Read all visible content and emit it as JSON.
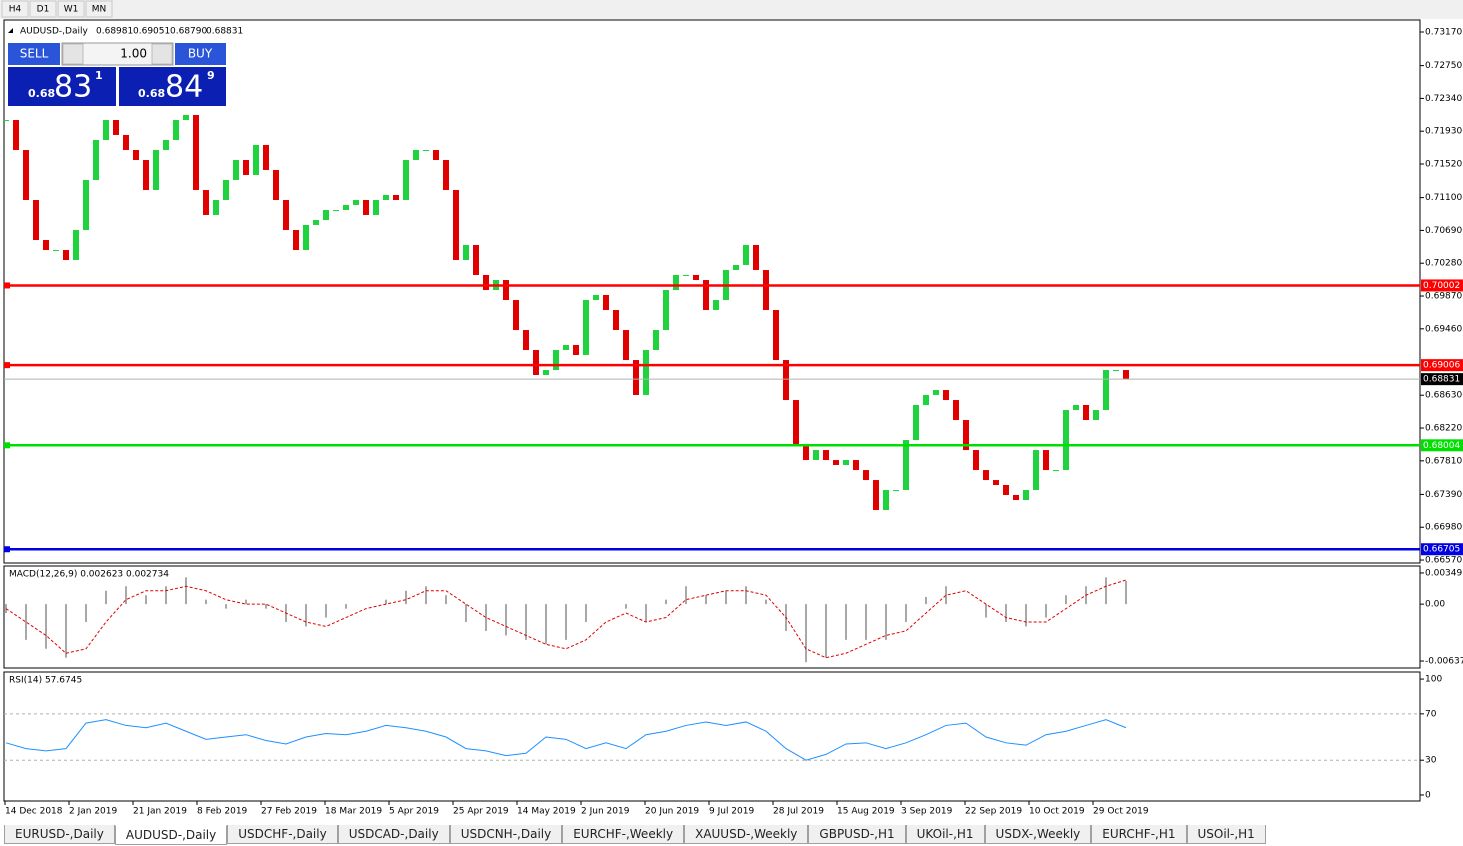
{
  "toolbar": {
    "timeframes": [
      "H4",
      "D1",
      "W1",
      "MN"
    ]
  },
  "header": {
    "symbol": "AUDUSD-,Daily",
    "ohlc": [
      "0.68981",
      "0.69051",
      "0.68790",
      "0.68831"
    ]
  },
  "trade_panel": {
    "sell": "SELL",
    "lot": "1.00",
    "buy": "BUY",
    "bid": {
      "prefix": "0.68",
      "big": "83",
      "small": "1"
    },
    "ask": {
      "prefix": "0.68",
      "big": "84",
      "small": "9"
    }
  },
  "price_chart": {
    "ylim": [
      0.66533,
      0.7332
    ],
    "yticks": [
      {
        "value": 0.7317,
        "label": "0.73170"
      },
      {
        "value": 0.7275,
        "label": "0.72750"
      },
      {
        "value": 0.7234,
        "label": "0.72340"
      },
      {
        "value": 0.7193,
        "label": "0.71930"
      },
      {
        "value": 0.7152,
        "label": "0.71520"
      },
      {
        "value": 0.711,
        "label": "0.71100"
      },
      {
        "value": 0.7069,
        "label": "0.70690"
      },
      {
        "value": 0.7028,
        "label": "0.70280"
      },
      {
        "value": 0.6987,
        "label": "0.69870"
      },
      {
        "value": 0.6946,
        "label": "0.69460"
      },
      {
        "value": 0.6863,
        "label": "0.68630"
      },
      {
        "value": 0.6822,
        "label": "0.68220"
      },
      {
        "value": 0.6781,
        "label": "0.67810"
      },
      {
        "value": 0.6739,
        "label": "0.67390"
      },
      {
        "value": 0.6698,
        "label": "0.66980"
      },
      {
        "value": 0.6657,
        "label": "0.66570"
      }
    ],
    "up_color": "#1fd33f",
    "down_color": "#e00000",
    "closes": [
      0.7207,
      0.71695,
      0.7107,
      0.7057,
      0.70445,
      0.70445,
      0.7032,
      0.70695,
      0.7132,
      0.7182,
      0.7207,
      0.71883,
      0.71695,
      0.7157,
      0.71195,
      0.71695,
      0.7182,
      0.7207,
      0.72133,
      0.71195,
      0.70883,
      0.7107,
      0.7132,
      0.7157,
      0.71383,
      0.71758,
      0.71445,
      0.7107,
      0.70695,
      0.70445,
      0.70758,
      0.7082,
      0.70945,
      0.70945,
      0.71008,
      0.7107,
      0.70883,
      0.7107,
      0.71133,
      0.7107,
      0.7157,
      0.71695,
      0.71695,
      0.7157,
      0.71195,
      0.7032,
      0.70508,
      0.70133,
      0.69945,
      0.7007,
      0.6982,
      0.69445,
      0.69195,
      0.68883,
      0.68945,
      0.69195,
      0.69258,
      0.69133,
      0.6982,
      0.69883,
      0.69695,
      0.69445,
      0.6907,
      0.68633,
      0.69195,
      0.69445,
      0.69945,
      0.70133,
      0.70133,
      0.7007,
      0.69695,
      0.6982,
      0.70195,
      0.70258,
      0.70508,
      0.70195,
      0.69695,
      0.6907,
      0.6857,
      0.68008,
      0.6782,
      0.67945,
      0.6782,
      0.67758,
      0.6782,
      0.67695,
      0.6757,
      0.67195,
      0.67445,
      0.67445,
      0.6807,
      0.68508,
      0.68633,
      0.68695,
      0.6857,
      0.6832,
      0.67945,
      0.67695,
      0.6757,
      0.67508,
      0.67383,
      0.6732,
      0.67445,
      0.67945,
      0.67695,
      0.67695,
      0.68445,
      0.68508,
      0.6832,
      0.68445,
      0.68945,
      0.68945,
      0.68831
    ],
    "levels": [
      {
        "value": 0.70002,
        "label": "0.70002",
        "color": "#ff0000"
      },
      {
        "value": 0.69006,
        "label": "0.69006",
        "color": "#ff0000"
      },
      {
        "value": 0.68004,
        "label": "0.68004",
        "color": "#00e000"
      },
      {
        "value": 0.66705,
        "label": "0.66705",
        "color": "#0000e0"
      }
    ],
    "current": {
      "value": 0.68831,
      "label": "0.68831"
    }
  },
  "macd": {
    "label": "MACD(12,26,9) 0.002623 0.002734",
    "ylim": [
      -0.00715,
      0.00427
    ],
    "yticks": [
      {
        "value": 0.00349,
        "label": "0.00349"
      },
      {
        "value": 0,
        "label": "0.00"
      },
      {
        "value": -0.00637,
        "label": "-0.00637"
      }
    ],
    "histogram": [
      -0.001,
      -0.004,
      -0.005,
      -0.006,
      -0.002,
      0.0015,
      0.002,
      0.001,
      0.002,
      0.003,
      0.0005,
      -0.0005,
      0.0005,
      -0.0005,
      -0.002,
      -0.0025,
      -0.0015,
      -0.0005,
      0.0,
      0.0005,
      0.0015,
      0.002,
      0.001,
      -0.002,
      -0.003,
      -0.0035,
      -0.004,
      -0.0045,
      -0.004,
      -0.002,
      0.0,
      -0.0005,
      -0.002,
      0.0005,
      0.002,
      0.001,
      0.0015,
      0.002,
      0.0005,
      -0.003,
      -0.0065,
      -0.006,
      -0.004,
      -0.004,
      -0.004,
      -0.002,
      0.0008,
      0.002,
      0.0,
      -0.0015,
      -0.002,
      -0.0025,
      -0.0015,
      0.001,
      0.002,
      0.003,
      0.0026
    ],
    "signal": [
      -0.0005,
      -0.002,
      -0.0035,
      -0.0055,
      -0.005,
      -0.002,
      0.0005,
      0.0015,
      0.0015,
      0.002,
      0.0015,
      0.0005,
      0.0,
      0.0,
      -0.001,
      -0.002,
      -0.0025,
      -0.0015,
      -0.0005,
      0.0,
      0.0005,
      0.0015,
      0.0015,
      0.0,
      -0.0015,
      -0.0025,
      -0.0035,
      -0.0045,
      -0.005,
      -0.004,
      -0.002,
      -0.001,
      -0.002,
      -0.0015,
      0.0005,
      0.001,
      0.0015,
      0.0015,
      0.001,
      -0.0015,
      -0.005,
      -0.006,
      -0.0055,
      -0.0045,
      -0.0035,
      -0.003,
      -0.001,
      0.001,
      0.0015,
      0.0,
      -0.0015,
      -0.002,
      -0.002,
      -0.0005,
      0.001,
      0.002,
      0.0027
    ]
  },
  "rsi": {
    "label": "RSI(14) 57.6745",
    "ylim": [
      -5.2,
      106.1
    ],
    "yticks": [
      100,
      70,
      30,
      0
    ],
    "levels": [
      70,
      30
    ],
    "values": [
      45,
      40,
      38,
      40,
      62,
      65,
      60,
      58,
      62,
      55,
      48,
      50,
      52,
      47,
      44,
      50,
      53,
      52,
      55,
      60,
      58,
      55,
      50,
      40,
      38,
      34,
      36,
      50,
      48,
      40,
      45,
      40,
      52,
      55,
      60,
      63,
      60,
      63,
      55,
      40,
      30,
      35,
      44,
      45,
      40,
      45,
      52,
      60,
      62,
      50,
      45,
      43,
      52,
      55,
      60,
      65,
      58
    ]
  },
  "time_axis": [
    "14 Dec 2018",
    "2 Jan 2019",
    "21 Jan 2019",
    "8 Feb 2019",
    "27 Feb 2019",
    "18 Mar 2019",
    "5 Apr 2019",
    "25 Apr 2019",
    "14 May 2019",
    "2 Jun 2019",
    "20 Jun 2019",
    "9 Jul 2019",
    "28 Jul 2019",
    "15 Aug 2019",
    "3 Sep 2019",
    "22 Sep 2019",
    "10 Oct 2019",
    "29 Oct 2019"
  ],
  "tabs": [
    "EURUSD-,Daily",
    "AUDUSD-,Daily",
    "USDCHF-,Daily",
    "USDCAD-,Daily",
    "USDCNH-,Daily",
    "EURCHF-,Weekly",
    "XAUUSD-,Weekly",
    "GBPUSD-,H1",
    "UKOil-,H1",
    "USDX-,Weekly",
    "EURCHF-,H1",
    "USOil-,H1"
  ]
}
